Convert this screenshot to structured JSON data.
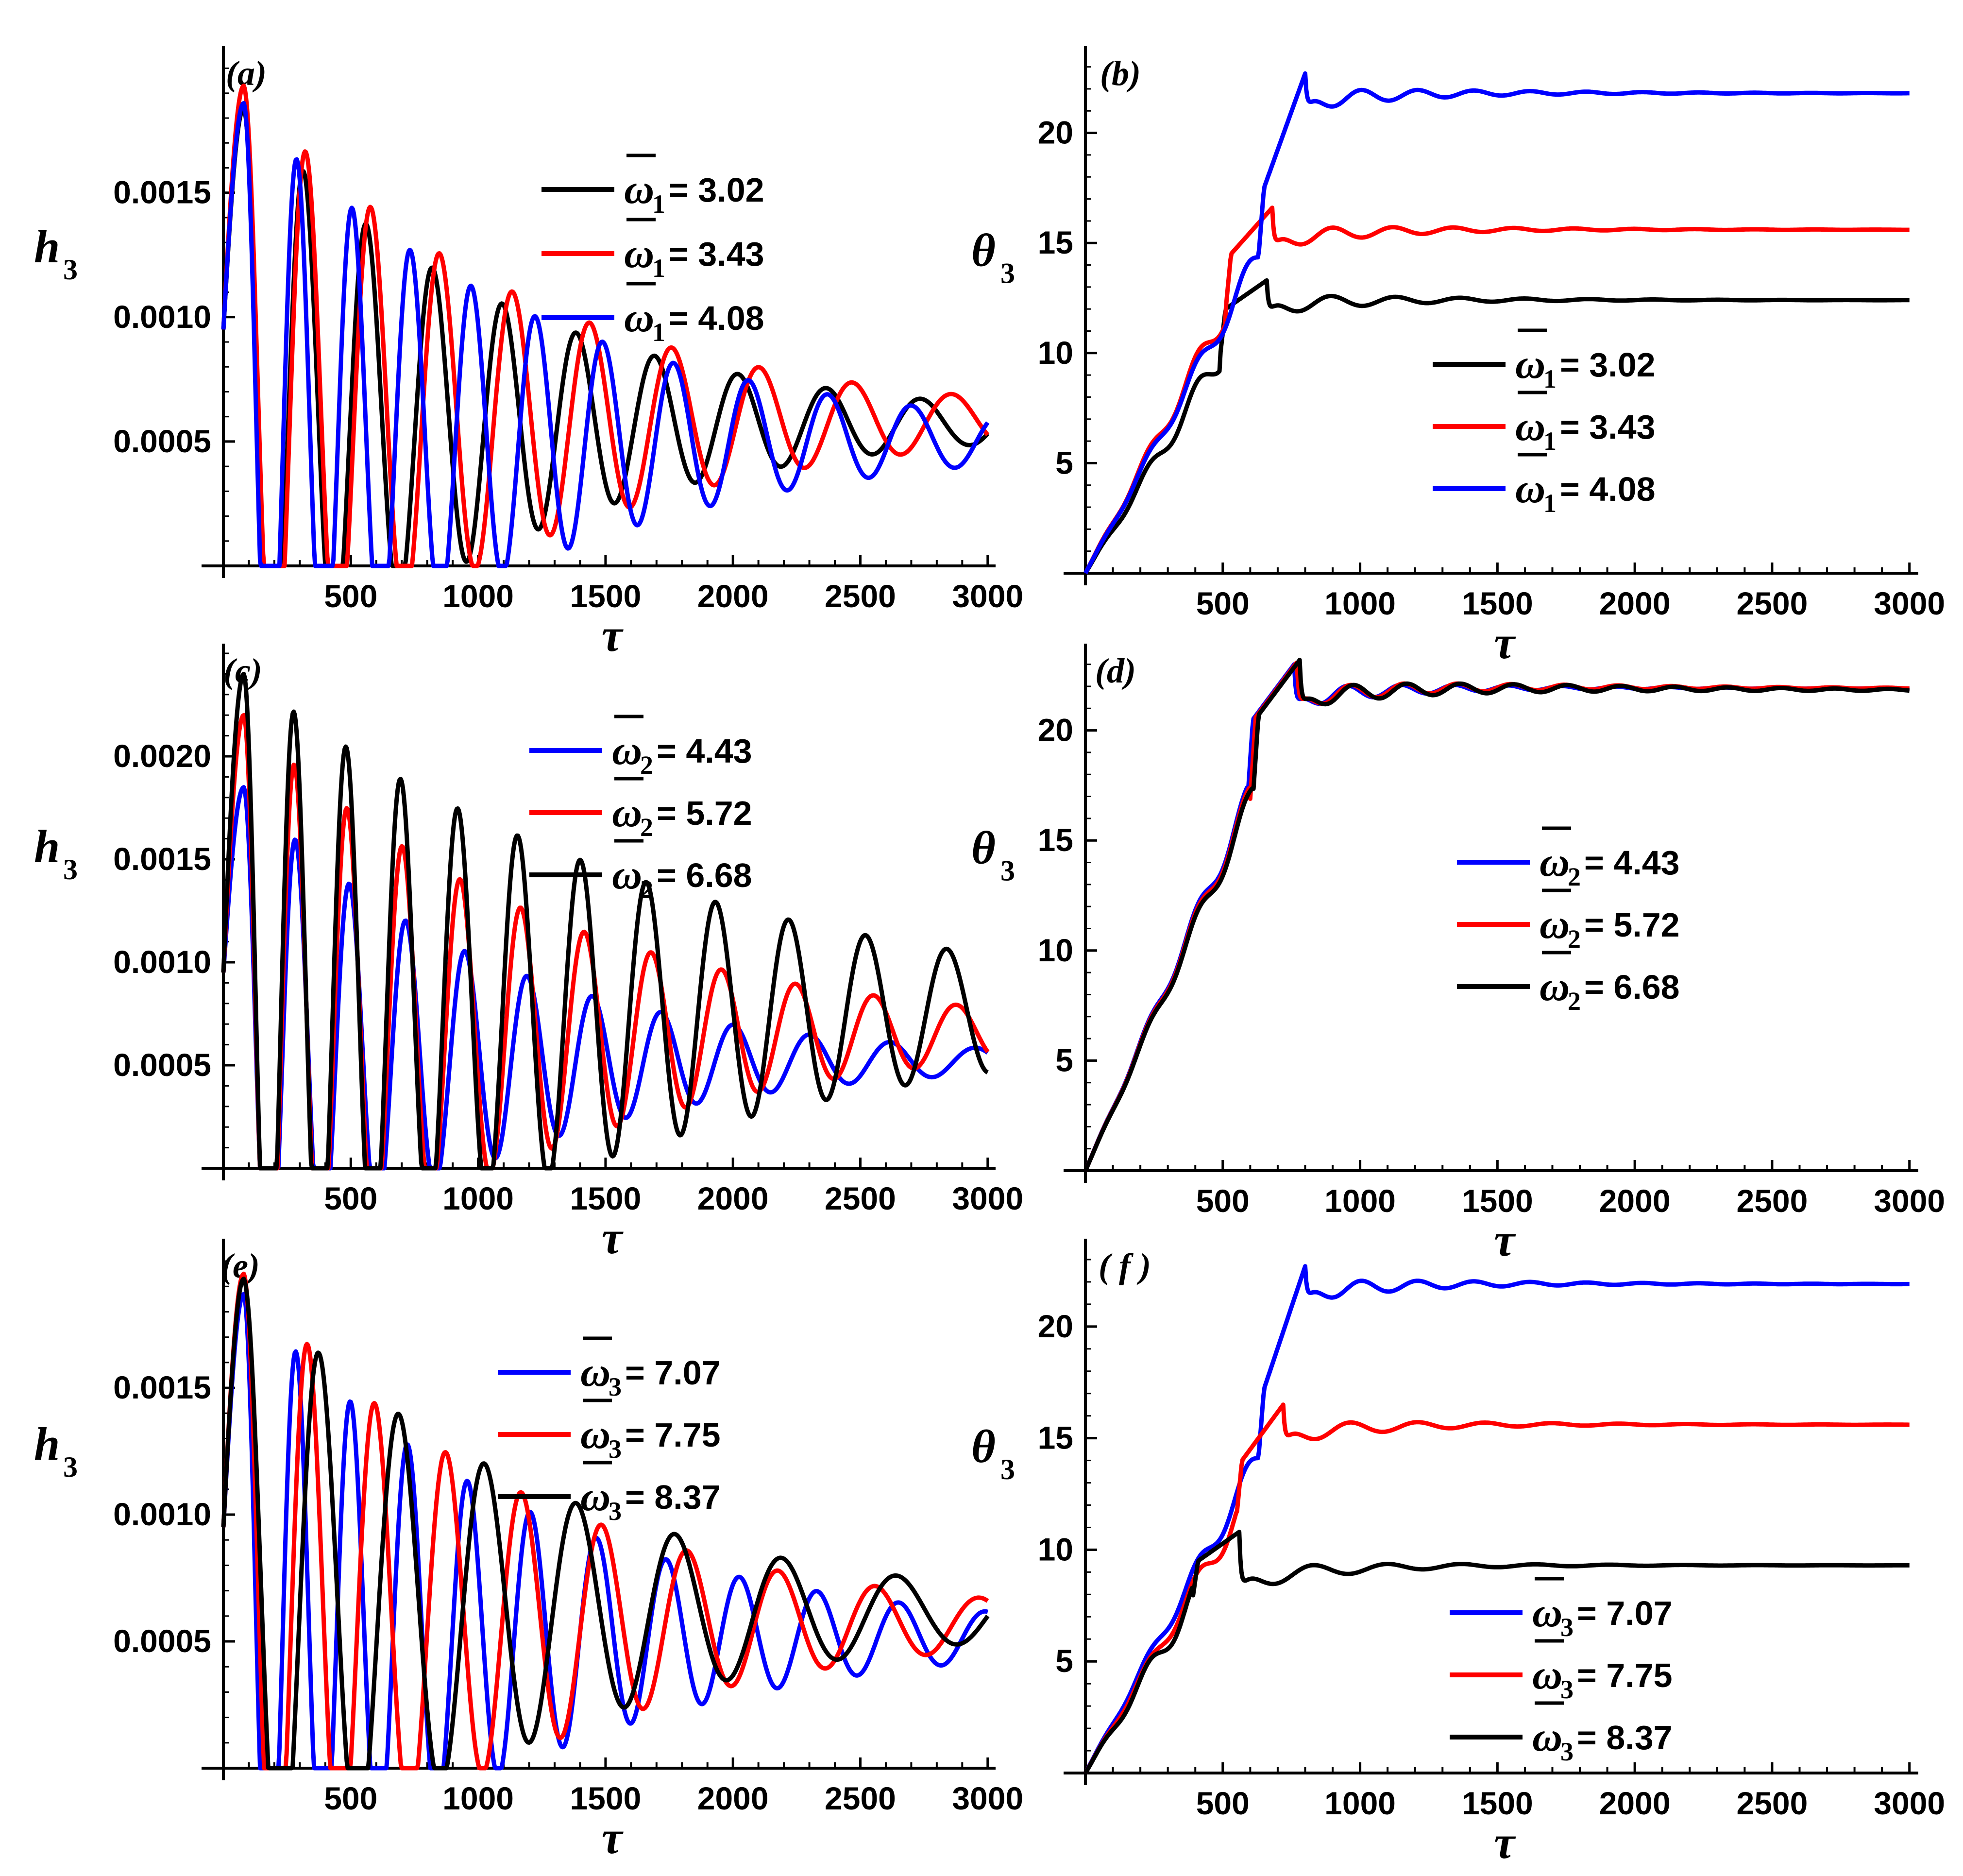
{
  "chart_data": [
    {
      "panel": "(a)",
      "type": "line",
      "xlabel": "τ",
      "ylabel": "h",
      "ylabel_sub": "3",
      "xlim": [
        0,
        3050
      ],
      "ylim": [
        0,
        0.00205
      ],
      "xticks": [
        500,
        1000,
        1500,
        2000,
        2500,
        3000
      ],
      "xtick_labels": [
        "500",
        "1000",
        "1500",
        "2000",
        "2500",
        "3000"
      ],
      "yticks": [
        0.0005,
        0.001,
        0.0015
      ],
      "ytick_labels": [
        "0.0005",
        "0.0010",
        "0.0015"
      ],
      "legend_position": "top-right",
      "legend_symbol": "ω",
      "legend_sub": "1",
      "series": [
        {
          "name": "ω̄1 = 3.02",
          "value": "3.02",
          "color": "#000000",
          "kind": "osc",
          "y0": 0.00095,
          "mean": 0.00057,
          "amp": 0.00127,
          "decay": 0.00095,
          "period": 228,
          "phase": 0.62,
          "draw_end": 3000
        },
        {
          "name": "ω̄1 = 3.43",
          "value": "3.43",
          "color": "#ff0000",
          "kind": "osc",
          "y0": 0.00095,
          "mean": 0.00058,
          "amp": 0.00135,
          "decay": 0.0009,
          "period": 236,
          "phase": 0.63,
          "draw_end": 3000
        },
        {
          "name": "ω̄1 = 4.08",
          "value": "4.08",
          "color": "#0000ff",
          "kind": "osc",
          "y0": 0.00095,
          "mean": 0.00051,
          "amp": 0.00135,
          "decay": 0.00088,
          "period": 203,
          "phase": 0.53,
          "draw_end": 3000
        }
      ]
    },
    {
      "panel": "(b)",
      "type": "line",
      "xlabel": "τ",
      "ylabel": "θ",
      "ylabel_sub": "3",
      "xlim": [
        0,
        3050
      ],
      "ylim": [
        0,
        23.5
      ],
      "xticks": [
        500,
        1000,
        1500,
        2000,
        2500,
        3000
      ],
      "xtick_labels": [
        "500",
        "1000",
        "1500",
        "2000",
        "2500",
        "3000"
      ],
      "yticks": [
        5,
        10,
        15,
        20
      ],
      "ytick_labels": [
        "5",
        "10",
        "15",
        "20"
      ],
      "legend_position": "center-right",
      "legend_symbol": "ω",
      "legend_sub": "1",
      "series": [
        {
          "name": "ω̄1 = 3.02",
          "value": "3.02",
          "color": "#000000",
          "kind": "step",
          "rise": 12.0,
          "sat": 12.4,
          "peak": 13.3,
          "tpeak": 660,
          "dip": 1.6,
          "osc": 0.9,
          "period": 235,
          "decay": 0.0021,
          "ramp_tau": 260,
          "draw_end": 3000
        },
        {
          "name": "ω̄1 = 3.43",
          "value": "3.43",
          "color": "#ff0000",
          "kind": "step",
          "rise": 14.5,
          "sat": 15.6,
          "peak": 16.6,
          "tpeak": 680,
          "dip": 1.9,
          "osc": 0.9,
          "period": 220,
          "decay": 0.002,
          "ramp_tau": 250,
          "draw_end": 3000
        },
        {
          "name": "ω̄1 = 4.08",
          "value": "4.08",
          "color": "#0000ff",
          "kind": "step",
          "rise": 17.5,
          "sat": 21.8,
          "peak": 22.7,
          "tpeak": 800,
          "dip": 1.7,
          "osc": 0.9,
          "period": 205,
          "decay": 0.002,
          "ramp_tau": 230,
          "draw_end": 3000
        }
      ]
    },
    {
      "panel": "(c)",
      "type": "line",
      "xlabel": "τ",
      "ylabel": "h",
      "ylabel_sub": "3",
      "xlim": [
        0,
        3050
      ],
      "ylim": [
        0,
        0.0025
      ],
      "xticks": [
        500,
        1000,
        1500,
        2000,
        2500,
        3000
      ],
      "xtick_labels": [
        "500",
        "1000",
        "1500",
        "2000",
        "2500",
        "3000"
      ],
      "yticks": [
        0.0005,
        0.001,
        0.0015,
        0.002
      ],
      "ytick_labels": [
        "0.0005",
        "0.0010",
        "0.0015",
        "0.0020"
      ],
      "legend_position": "top-right",
      "legend_symbol": "ω",
      "legend_sub": "2",
      "series": [
        {
          "name": "ω̄2 = 4.43",
          "value": "4.43",
          "color": "#0000ff",
          "kind": "osc",
          "y0": 0.00095,
          "mean": 0.00052,
          "amp": 0.00133,
          "decay": 0.00105,
          "period": 198,
          "phase": 0.5,
          "draw_end": 3000
        },
        {
          "name": "ω̄2 = 5.72",
          "value": "5.72",
          "color": "#ff0000",
          "kind": "osc",
          "y0": 0.00095,
          "mean": 0.00065,
          "amp": 0.00155,
          "decay": 0.00085,
          "period": 194,
          "phase": 0.5,
          "draw_end": 3000
        },
        {
          "name": "ω̄2 = 6.68",
          "value": "6.68",
          "color": "#000000",
          "kind": "osc",
          "y0": 0.00095,
          "mean": 0.00075,
          "amp": 0.00165,
          "decay": 0.0006,
          "period": 192,
          "phase": 0.5,
          "draw_end": 3000
        }
      ]
    },
    {
      "panel": "(d)",
      "type": "line",
      "xlabel": "τ",
      "ylabel": "θ",
      "ylabel_sub": "3",
      "xlim": [
        0,
        3050
      ],
      "ylim": [
        0,
        23.5
      ],
      "xticks": [
        500,
        1000,
        1500,
        2000,
        2500,
        3000
      ],
      "xtick_labels": [
        "500",
        "1000",
        "1500",
        "2000",
        "2500",
        "3000"
      ],
      "yticks": [
        5,
        10,
        15,
        20
      ],
      "ytick_labels": [
        "5",
        "10",
        "15",
        "20"
      ],
      "legend_position": "center-right",
      "legend_symbol": "ω",
      "legend_sub": "2",
      "series": [
        {
          "name": "ω̄2 = 4.43",
          "value": "4.43",
          "color": "#0000ff",
          "kind": "step",
          "rise": 20.5,
          "sat": 21.9,
          "peak": 23.0,
          "tpeak": 760,
          "dip": 2.0,
          "osc": 0.9,
          "period": 195,
          "decay": 0.0017,
          "ramp_tau": 210,
          "draw_end": 3000
        },
        {
          "name": "ω̄2 = 5.72",
          "value": "5.72",
          "color": "#ff0000",
          "kind": "step",
          "rise": 20.6,
          "sat": 21.9,
          "peak": 23.1,
          "tpeak": 770,
          "dip": 2.1,
          "osc": 0.9,
          "period": 195,
          "decay": 0.0014,
          "ramp_tau": 210,
          "draw_end": 3000
        },
        {
          "name": "ω̄2 = 6.68",
          "value": "6.68",
          "color": "#000000",
          "kind": "step",
          "rise": 20.7,
          "sat": 21.8,
          "peak": 23.2,
          "tpeak": 780,
          "dip": 2.2,
          "osc": 0.9,
          "period": 195,
          "decay": 0.0011,
          "ramp_tau": 210,
          "draw_end": 3000
        }
      ]
    },
    {
      "panel": "(e)",
      "type": "line",
      "xlabel": "τ",
      "ylabel": "h",
      "ylabel_sub": "3",
      "xlim": [
        0,
        3050
      ],
      "ylim": [
        0,
        0.00205
      ],
      "xticks": [
        500,
        1000,
        1500,
        2000,
        2500,
        3000
      ],
      "xtick_labels": [
        "500",
        "1000",
        "1500",
        "2000",
        "2500",
        "3000"
      ],
      "yticks": [
        0.0005,
        0.001,
        0.0015
      ],
      "ytick_labels": [
        "0.0005",
        "0.0010",
        "0.0015"
      ],
      "legend_position": "top-right",
      "legend_symbol": "ω",
      "legend_sub": "3",
      "series": [
        {
          "name": "ω̄3 = 7.07",
          "value": "7.07",
          "color": "#0000ff",
          "kind": "osc",
          "y0": 0.00095,
          "mean": 0.00052,
          "amp": 0.00135,
          "decay": 0.0009,
          "period": 200,
          "phase": 0.55,
          "draw_end": 3000
        },
        {
          "name": "ω̄3 = 7.75",
          "value": "7.75",
          "color": "#ff0000",
          "kind": "osc",
          "y0": 0.00095,
          "mean": 0.00057,
          "amp": 0.00138,
          "decay": 0.0009,
          "period": 243,
          "phase": 0.57,
          "draw_end": 3000
        },
        {
          "name": "ω̄3 = 8.37",
          "value": "8.37",
          "color": "#000000",
          "kind": "osc",
          "y0": 0.00095,
          "mean": 0.00061,
          "amp": 0.00132,
          "decay": 0.00085,
          "period": 285,
          "phase": 0.55,
          "draw_end": 3000
        }
      ]
    },
    {
      "panel": "( f )",
      "type": "line",
      "xlabel": "τ",
      "ylabel": "θ",
      "ylabel_sub": "3",
      "xlim": [
        0,
        3050
      ],
      "ylim": [
        0,
        23.5
      ],
      "xticks": [
        500,
        1000,
        1500,
        2000,
        2500,
        3000
      ],
      "xtick_labels": [
        "500",
        "1000",
        "1500",
        "2000",
        "2500",
        "3000"
      ],
      "yticks": [
        5,
        10,
        15,
        20
      ],
      "ytick_labels": [
        "5",
        "10",
        "15",
        "20"
      ],
      "legend_position": "bottom-right",
      "legend_symbol": "ω",
      "legend_sub": "3",
      "series": [
        {
          "name": "ω̄3 = 7.07",
          "value": "7.07",
          "color": "#0000ff",
          "kind": "step",
          "rise": 17.2,
          "sat": 21.9,
          "peak": 22.7,
          "tpeak": 800,
          "dip": 1.6,
          "osc": 0.9,
          "period": 205,
          "decay": 0.002,
          "ramp_tau": 230,
          "draw_end": 3000
        },
        {
          "name": "ω̄3 = 7.75",
          "value": "7.75",
          "color": "#ff0000",
          "kind": "step",
          "rise": 14.0,
          "sat": 15.6,
          "peak": 16.5,
          "tpeak": 720,
          "dip": 1.8,
          "osc": 0.9,
          "period": 245,
          "decay": 0.002,
          "ramp_tau": 250,
          "draw_end": 3000
        },
        {
          "name": "ω̄3 = 8.37",
          "value": "8.37",
          "color": "#000000",
          "kind": "step",
          "rise": 9.5,
          "sat": 9.3,
          "peak": 10.8,
          "tpeak": 560,
          "dip": 2.7,
          "osc": 1.0,
          "period": 270,
          "decay": 0.0021,
          "ramp_tau": 260,
          "draw_end": 3000
        }
      ]
    }
  ]
}
